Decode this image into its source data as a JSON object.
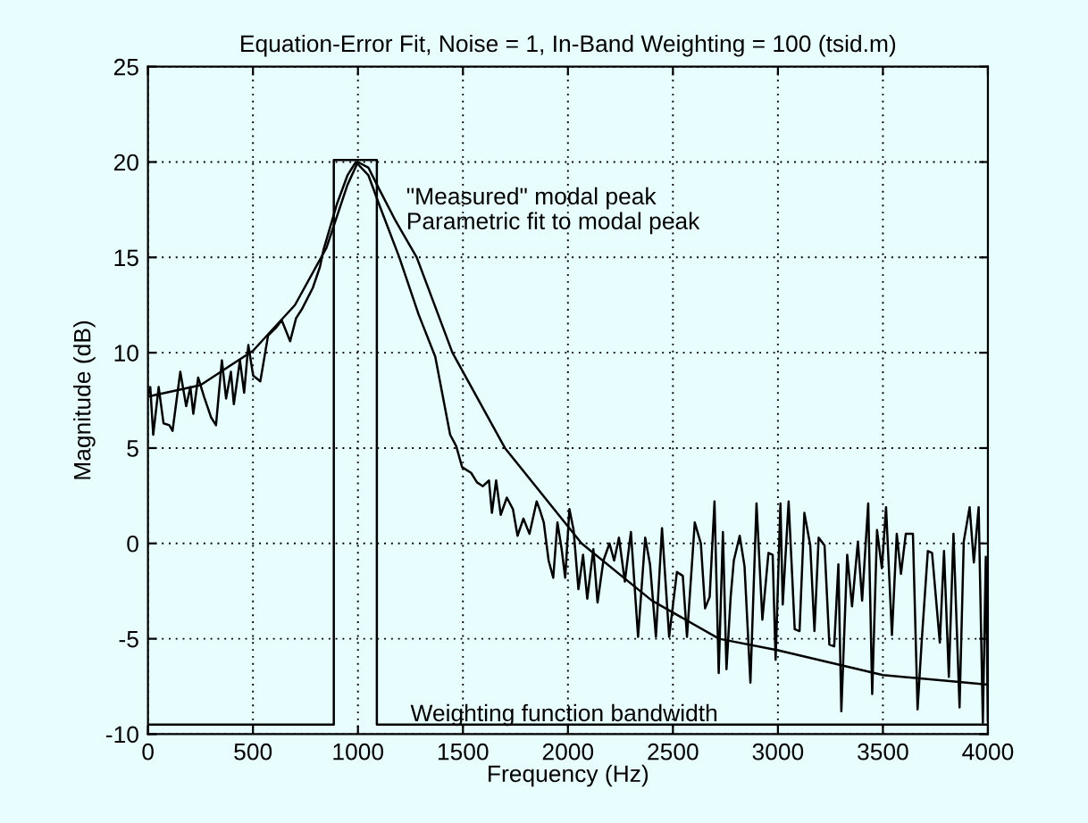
{
  "chart_data": {
    "type": "line",
    "title": "Equation-Error Fit, Noise = 1, In-Band Weighting = 100 (tsid.m)",
    "xlabel": "Frequency (Hz)",
    "ylabel": "Magnitude (dB)",
    "xlim": [
      0,
      4000
    ],
    "ylim": [
      -10,
      25
    ],
    "xticks": [
      0,
      500,
      1000,
      1500,
      2000,
      2500,
      3000,
      3500,
      4000
    ],
    "yticks": [
      -10,
      -5,
      0,
      5,
      10,
      15,
      20,
      25
    ],
    "grid": true,
    "annotations": [
      "\"Measured\" modal peak",
      "Parametric fit to modal peak",
      "Weighting function bandwidth"
    ],
    "marker": "none",
    "line_style": "solid",
    "series": [
      {
        "color": "#000000",
        "x": [
          0,
          11,
          25,
          51,
          74,
          102,
          117,
          154,
          182,
          202,
          216,
          239,
          267,
          301,
          324,
          352,
          372,
          395,
          409,
          438,
          458,
          478,
          501,
          535,
          572,
          609,
          637,
          677,
          705,
          734,
          757,
          785,
          819,
          836,
          900,
          950,
          990,
          1050,
          1100,
          1197,
          1289,
          1368,
          1439,
          1468,
          1496,
          1539,
          1567,
          1595,
          1624,
          1638,
          1658,
          1680,
          1709,
          1738,
          1760,
          1788,
          1817,
          1851,
          1865,
          1885,
          1908,
          1930,
          1950,
          1970,
          1987,
          2007,
          2027,
          2050,
          2072,
          2092,
          2121,
          2141,
          2169,
          2198,
          2220,
          2243,
          2271,
          2300,
          2334,
          2368,
          2391,
          2419,
          2448,
          2482,
          2519,
          2547,
          2567,
          2604,
          2633,
          2653,
          2675,
          2698,
          2718,
          2738,
          2755,
          2775,
          2790,
          2818,
          2841,
          2869,
          2898,
          2926,
          2955,
          2975,
          2989,
          3012,
          3023,
          3051,
          3080,
          3103,
          3126,
          3154,
          3174,
          3194,
          3222,
          3245,
          3268,
          3288,
          3302,
          3330,
          3353,
          3381,
          3401,
          3430,
          3449,
          3472,
          3495,
          3515,
          3543,
          3566,
          3586,
          3609,
          3643,
          3665,
          3685,
          3714,
          3734,
          3771,
          3791,
          3814,
          3836,
          3865,
          3885,
          3913,
          3933,
          3956,
          3976,
          3990,
          4000
        ],
        "values": [
          7.8,
          8.2,
          5.7,
          8.2,
          6.3,
          6.2,
          5.9,
          9.0,
          7.2,
          8.2,
          6.8,
          8.7,
          7.7,
          6.6,
          6.2,
          9.6,
          7.6,
          9.0,
          7.3,
          9.6,
          7.9,
          10.4,
          8.8,
          8.5,
          10.9,
          11.3,
          11.7,
          10.6,
          11.8,
          12.3,
          12.8,
          13.4,
          14.5,
          15.4,
          17.8,
          19.3,
          20.0,
          19.3,
          17.8,
          15.0,
          12.0,
          9.8,
          5.7,
          5.1,
          4.0,
          3.7,
          3.2,
          3.0,
          3.3,
          1.6,
          3.3,
          1.5,
          2.4,
          1.8,
          0.4,
          1.3,
          0.5,
          2.2,
          1.8,
          1.1,
          -0.9,
          -1.8,
          1.1,
          -0.3,
          -1.8,
          1.8,
          0.7,
          -2.4,
          -0.6,
          -2.9,
          -0.3,
          -3.1,
          -0.9,
          0.0,
          -0.9,
          0.3,
          -2.0,
          0.6,
          -4.9,
          0.3,
          -1.1,
          -4.9,
          0.8,
          -4.9,
          -1.5,
          -1.7,
          -4.9,
          1.1,
          0.0,
          -3.4,
          -2.8,
          2.2,
          -6.8,
          0.6,
          -6.6,
          -2.8,
          -0.9,
          0.4,
          -1.2,
          -7.3,
          2.1,
          -4.0,
          -0.5,
          -0.6,
          -6.1,
          2.1,
          -3.2,
          2.2,
          -4.5,
          -4.6,
          1.6,
          -0.1,
          -4.6,
          0.3,
          -0.1,
          -5.3,
          -5.4,
          -1.1,
          -8.8,
          -0.6,
          -3.3,
          0.1,
          -3.0,
          2.1,
          -7.9,
          0.7,
          -1.3,
          1.9,
          -4.8,
          0.5,
          -1.6,
          0.5,
          0.5,
          -8.7,
          -5.1,
          -0.4,
          -0.5,
          -5.2,
          -0.4,
          -7.0,
          0.5,
          -8.6,
          0.1,
          1.9,
          -1.0,
          1.9,
          -9.4,
          -0.7,
          -9.3
        ]
      },
      {
        "color": "#000000",
        "x": [
          0,
          250,
          500,
          700,
          850,
          950,
          1000,
          1050,
          1100,
          1180,
          1280,
          1450,
          1700,
          2065,
          2400,
          2720,
          3000,
          3500,
          4000
        ],
        "values": [
          7.7,
          8.3,
          10.1,
          12.5,
          15.5,
          18.8,
          20.0,
          19.7,
          18.6,
          16.9,
          15.0,
          10.0,
          5.0,
          0.0,
          -3.0,
          -5.0,
          -5.6,
          -6.9,
          -7.4
        ]
      },
      {
        "color": "#000000",
        "x": [
          0,
          885,
          885,
          1090,
          1090,
          4000
        ],
        "values": [
          -9.5,
          -9.5,
          20.1,
          20.1,
          -9.5,
          -9.5
        ]
      }
    ]
  }
}
